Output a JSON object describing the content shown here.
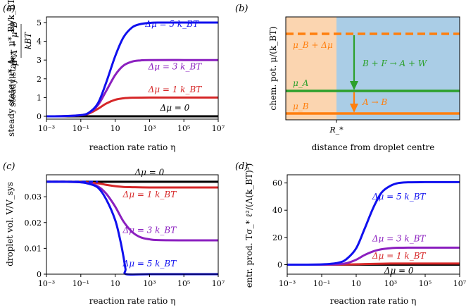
{
  "panels": {
    "a": {
      "letter": "(a)"
    },
    "b": {
      "letter": "(b)"
    },
    "c": {
      "letter": "(c)"
    },
    "d": {
      "letter": "(d)"
    }
  },
  "chart_data": [
    {
      "id": "a",
      "type": "line",
      "xscale": "log",
      "xlim": [
        0.001,
        10000000
      ],
      "ylim": [
        -0.15,
        5.3
      ],
      "xlabel": "reaction rate ratio η",
      "ylabel": "steady state (μ*_A − μ*_B)/k_BT",
      "xticks": [
        0.001,
        0.1,
        10,
        1000,
        100000,
        10000000
      ],
      "xtick_labels": [
        "10⁻³",
        "10⁻¹",
        "10",
        "10³",
        "10⁵",
        "10⁷"
      ],
      "yticks": [
        0,
        1,
        2,
        3,
        4,
        5
      ],
      "ytick_labels": [
        "0",
        "1",
        "2",
        "3",
        "4",
        "5"
      ],
      "series": [
        {
          "name": "Δμ = 0",
          "color": "#000000",
          "x": [
            0.001,
            0.1,
            1,
            10,
            100,
            1000,
            100000,
            10000000
          ],
          "values": [
            0,
            0,
            0,
            0,
            0,
            0,
            0,
            0
          ]
        },
        {
          "name": "Δμ = 1 k_BT",
          "color": "#d62728",
          "x": [
            0.001,
            0.01,
            0.1,
            0.3,
            1,
            3,
            10,
            30,
            100,
            1000,
            100000,
            10000000
          ],
          "values": [
            0.0,
            0.01,
            0.05,
            0.15,
            0.4,
            0.68,
            0.88,
            0.96,
            0.99,
            1.0,
            1.0,
            1.0
          ]
        },
        {
          "name": "Δμ = 3 k_BT",
          "color": "#8b1fbf",
          "x": [
            0.001,
            0.01,
            0.1,
            0.3,
            1,
            3,
            10,
            30,
            100,
            300,
            1000,
            100000,
            10000000
          ],
          "values": [
            0.0,
            0.01,
            0.06,
            0.18,
            0.6,
            1.35,
            2.2,
            2.7,
            2.92,
            2.98,
            3.0,
            3.0,
            3.0
          ]
        },
        {
          "name": "Δμ = 5 k_BT",
          "color": "#1010ee",
          "x": [
            0.001,
            0.01,
            0.1,
            0.3,
            1,
            3,
            10,
            30,
            100,
            300,
            1000,
            3000,
            100000,
            10000000
          ],
          "values": [
            0.0,
            0.01,
            0.06,
            0.2,
            0.7,
            1.8,
            3.2,
            4.2,
            4.75,
            4.92,
            4.98,
            5.0,
            5.0,
            5.0
          ]
        }
      ],
      "annotations": [
        {
          "text": "Δμ = 5 k_BT",
          "color": "#1010ee",
          "x": 20000,
          "y": 4.78
        },
        {
          "text": "Δμ = 3 k_BT",
          "color": "#8b1fbf",
          "x": 30000,
          "y": 2.5
        },
        {
          "text": "Δμ = 1 k_BT",
          "color": "#d62728",
          "x": 30000,
          "y": 1.28
        },
        {
          "text": "Δμ = 0",
          "color": "#000000",
          "x": 30000,
          "y": 0.3
        }
      ]
    },
    {
      "id": "b",
      "type": "diagram",
      "xlabel": "distance from droplet centre",
      "ylabel": "chem. pot. μ/(k_BT)",
      "xtick_label": "R_*",
      "regions": [
        {
          "name": "inside droplet",
          "color": "#fbd5b0"
        },
        {
          "name": "outside droplet",
          "color": "#aacde6"
        }
      ],
      "levels": [
        {
          "name": "μ_B + Δμ",
          "color": "#ff7f0e",
          "style": "dashed"
        },
        {
          "name": "μ_A",
          "color": "#2ca02c",
          "style": "solid"
        },
        {
          "name": "μ_B",
          "color": "#ff7f0e",
          "style": "solid"
        }
      ],
      "reactions": [
        {
          "text": "B + F → A + W",
          "color": "#2ca02c"
        },
        {
          "text": "A → B",
          "color": "#ff7f0e"
        }
      ]
    },
    {
      "id": "c",
      "type": "line",
      "xscale": "log",
      "xlim": [
        0.001,
        10000000
      ],
      "ylim": [
        0,
        0.0385
      ],
      "xlabel": "reaction rate ratio η",
      "ylabel": "droplet vol. V/V_sys",
      "xticks": [
        0.001,
        0.1,
        10,
        1000,
        100000,
        10000000
      ],
      "xtick_labels": [
        "10⁻³",
        "10⁻¹",
        "10",
        "10³",
        "10⁵",
        "10⁷"
      ],
      "yticks": [
        0,
        0.01,
        0.02,
        0.03
      ],
      "ytick_labels": [
        "0",
        "0.01",
        "0.02",
        "0.03"
      ],
      "series": [
        {
          "name": "Δμ = 0",
          "color": "#000000",
          "x": [
            0.001,
            10000000
          ],
          "values": [
            0.0358,
            0.0358
          ]
        },
        {
          "name": "Δμ = 1 k_BT",
          "color": "#d62728",
          "x": [
            0.001,
            0.01,
            0.1,
            1,
            3,
            10,
            30,
            100,
            1000,
            100000,
            10000000
          ],
          "values": [
            0.0358,
            0.0358,
            0.0357,
            0.0352,
            0.0346,
            0.0341,
            0.0338,
            0.0337,
            0.0336,
            0.0336,
            0.0336
          ]
        },
        {
          "name": "Δμ = 3 k_BT",
          "color": "#8b1fbf",
          "x": [
            0.001,
            0.01,
            0.1,
            0.3,
            1,
            3,
            10,
            30,
            100,
            300,
            1000,
            3000,
            100000,
            10000000
          ],
          "values": [
            0.0358,
            0.0358,
            0.0356,
            0.0352,
            0.034,
            0.0312,
            0.0262,
            0.0205,
            0.0163,
            0.0143,
            0.0135,
            0.0132,
            0.0131,
            0.0131
          ]
        },
        {
          "name": "Δμ = 5 k_BT",
          "color": "#1010ee",
          "x": [
            0.001,
            0.01,
            0.1,
            0.3,
            1,
            3,
            10,
            20,
            30,
            40,
            45,
            1000,
            100000,
            10000000
          ],
          "values": [
            0.0358,
            0.0358,
            0.0356,
            0.035,
            0.0335,
            0.029,
            0.021,
            0.013,
            0.007,
            0.002,
            0,
            0,
            0,
            0
          ]
        }
      ],
      "annotations": [
        {
          "text": "Δμ = 0",
          "color": "#000000",
          "x": 1000,
          "y": 0.0383
        },
        {
          "text": "Δμ = 1 k_BT",
          "color": "#d62728",
          "x": 1000,
          "y": 0.0298
        },
        {
          "text": "Δμ = 3 k_BT",
          "color": "#8b1fbf",
          "x": 1000,
          "y": 0.016
        },
        {
          "text": "Δμ = 5 k_BT",
          "color": "#1010ee",
          "x": 1000,
          "y": 0.003
        }
      ]
    },
    {
      "id": "d",
      "type": "line",
      "xscale": "log",
      "xlim": [
        0.001,
        10000000
      ],
      "ylim": [
        -7,
        66
      ],
      "xlabel": "reaction rate ratio η",
      "ylabel": "entr. prod. Tσ_* ℓ²/(Λ(k_BT)²)",
      "xticks": [
        0.001,
        0.1,
        10,
        1000,
        100000,
        10000000
      ],
      "xtick_labels": [
        "10⁻³",
        "10⁻¹",
        "10",
        "10³",
        "10⁵",
        "10⁷"
      ],
      "yticks": [
        0,
        20,
        40,
        60
      ],
      "ytick_labels": [
        "0",
        "20",
        "40",
        "60"
      ],
      "series": [
        {
          "name": "Δμ = 0",
          "color": "#000000",
          "x": [
            0.001,
            10000000
          ],
          "values": [
            0,
            0
          ]
        },
        {
          "name": "Δμ = 1 k_BT",
          "color": "#d62728",
          "x": [
            0.001,
            0.1,
            1,
            10,
            100,
            1000,
            10000,
            100000,
            10000000
          ],
          "values": [
            0,
            0.01,
            0.05,
            0.25,
            0.6,
            0.8,
            0.85,
            0.85,
            0.85
          ]
        },
        {
          "name": "Δμ = 3 k_BT",
          "color": "#8b1fbf",
          "x": [
            0.001,
            0.1,
            1,
            3,
            10,
            30,
            100,
            300,
            1000,
            3000,
            10000,
            100000,
            10000000
          ],
          "values": [
            0,
            0.05,
            0.35,
            1.2,
            3.6,
            7.0,
            9.8,
            11.3,
            12.1,
            12.4,
            12.5,
            12.5,
            12.5
          ]
        },
        {
          "name": "Δμ = 5 k_BT",
          "color": "#1010ee",
          "x": [
            0.001,
            0.1,
            1,
            3,
            10,
            30,
            100,
            300,
            1000,
            3000,
            10000,
            100000,
            10000000
          ],
          "values": [
            0,
            0.2,
            1.5,
            4.5,
            12,
            26,
            42,
            53,
            58,
            60,
            60.5,
            60.6,
            60.6
          ]
        }
      ],
      "annotations": [
        {
          "text": "Δμ = 5 k_BT",
          "color": "#1010ee",
          "x": 3000,
          "y": 48
        },
        {
          "text": "Δμ = 3 k_BT",
          "color": "#8b1fbf",
          "x": 3000,
          "y": 17
        },
        {
          "text": "Δμ = 1 k_BT",
          "color": "#d62728",
          "x": 3000,
          "y": 4.5
        },
        {
          "text": "Δμ = 0",
          "color": "#000000",
          "x": 3000,
          "y": -6.5
        }
      ]
    }
  ]
}
